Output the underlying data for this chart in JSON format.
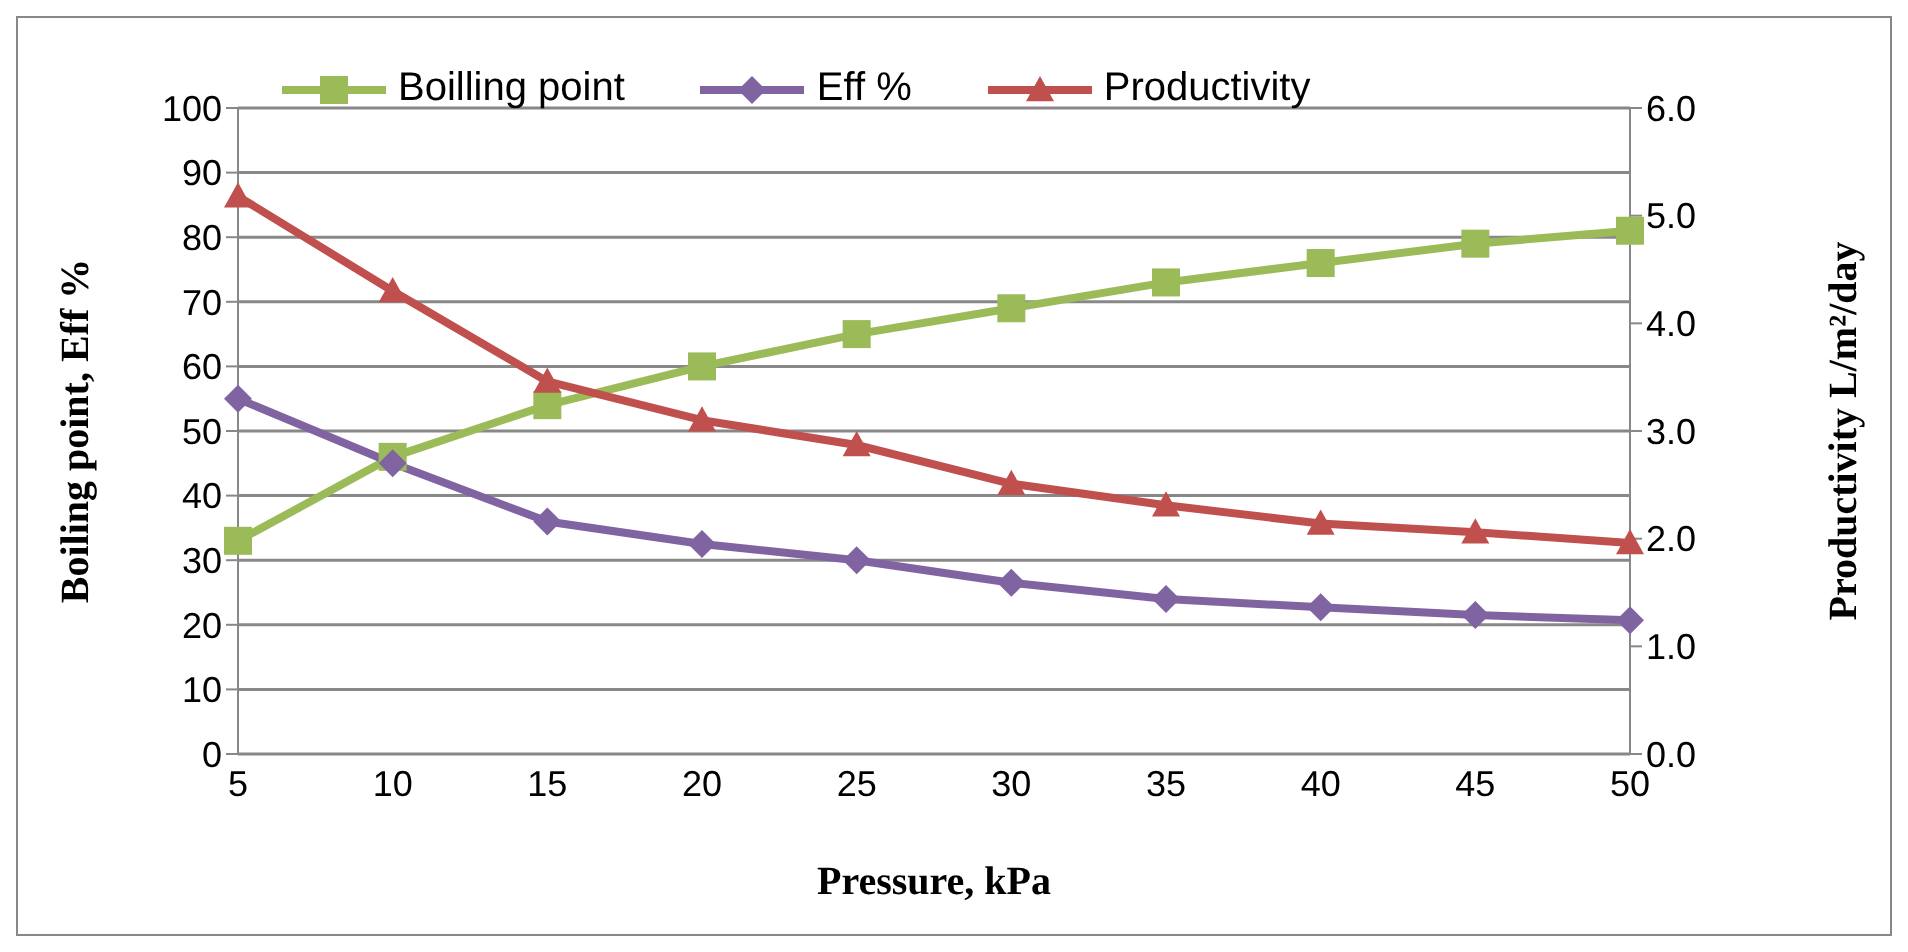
{
  "chart_data": {
    "type": "line",
    "xlabel": "Pressure, kPa",
    "ylabel": "Boiling point, Eff %",
    "y2label": "Productivity L/m²/day",
    "categories": [
      "5",
      "10",
      "15",
      "20",
      "25",
      "30",
      "35",
      "40",
      "45",
      "50"
    ],
    "series": [
      {
        "name": "Boilling point",
        "color": "#9bbb59",
        "marker": "square",
        "values": [
          33,
          46,
          54,
          60,
          65,
          69,
          73,
          76,
          79,
          81
        ]
      },
      {
        "name": "Eff %",
        "color": "#8064a2",
        "marker": "diamond",
        "values": [
          55,
          45,
          36,
          32.5,
          30,
          26.5,
          24,
          22.7,
          21.5,
          20.7
        ]
      },
      {
        "name": "Productivity",
        "color": "#c0504d",
        "marker": "triangle",
        "axis": "y2",
        "values": [
          5.18,
          4.3,
          3.46,
          3.1,
          2.87,
          2.51,
          2.31,
          2.14,
          2.06,
          1.96
        ]
      }
    ],
    "ylim": [
      0,
      100
    ],
    "yticks": [
      0,
      10,
      20,
      30,
      40,
      50,
      60,
      70,
      80,
      90,
      100
    ],
    "y2lim": [
      0,
      6
    ],
    "y2ticks": [
      {
        "value": 0,
        "label": "0.0"
      },
      {
        "value": 1,
        "label": "1.0"
      },
      {
        "value": 2,
        "label": "2.0"
      },
      {
        "value": 3,
        "label": "3.0"
      },
      {
        "value": 4,
        "label": "4.0"
      },
      {
        "value": 5,
        "label": "5.0"
      },
      {
        "value": 6,
        "label": "6.0"
      }
    ],
    "grid": "y",
    "legend": "top"
  }
}
